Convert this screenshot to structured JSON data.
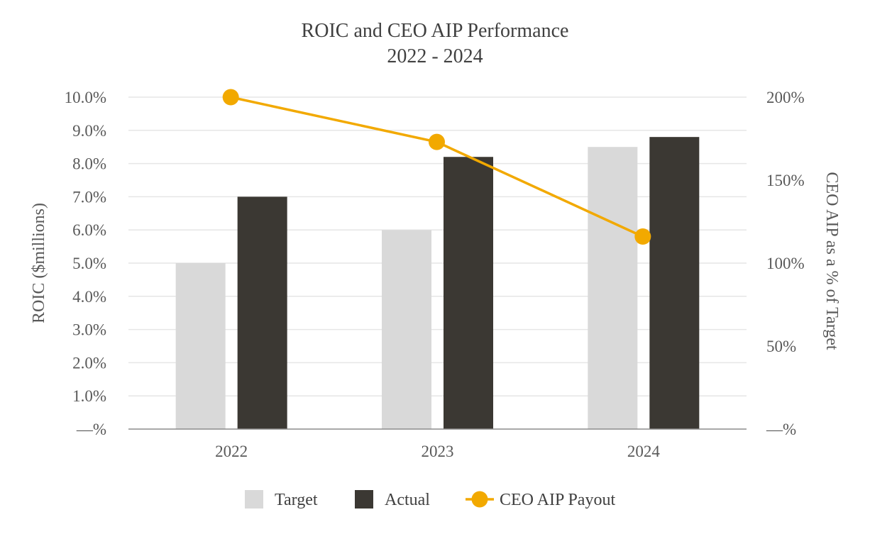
{
  "chart_data": {
    "type": "bar",
    "title": "ROIC and CEO AIP Performance",
    "subtitle": "2022 - 2024",
    "categories": [
      "2022",
      "2023",
      "2024"
    ],
    "series": [
      {
        "name": "Target",
        "type": "bar",
        "axis": "left",
        "values": [
          5.0,
          6.0,
          8.5
        ],
        "color": "#d9d9d9"
      },
      {
        "name": "Actual",
        "type": "bar",
        "axis": "left",
        "values": [
          7.0,
          8.2,
          8.8
        ],
        "color": "#3b3833"
      },
      {
        "name": "CEO AIP Payout",
        "type": "line",
        "axis": "right",
        "values": [
          200,
          173,
          116
        ],
        "color": "#f2a900"
      }
    ],
    "ylabel": "ROIC ($millions)",
    "y2label": "CEO AIP as a % of Target",
    "ylim": [
      0,
      10
    ],
    "y2lim": [
      0,
      200
    ],
    "yticks": [
      "—%",
      "1.0%",
      "2.0%",
      "3.0%",
      "4.0%",
      "5.0%",
      "6.0%",
      "7.0%",
      "8.0%",
      "9.0%",
      "10.0%"
    ],
    "y2ticks": [
      "—%",
      "50%",
      "100%",
      "150%",
      "200%"
    ],
    "grid": true,
    "legend": "bottom-center"
  }
}
